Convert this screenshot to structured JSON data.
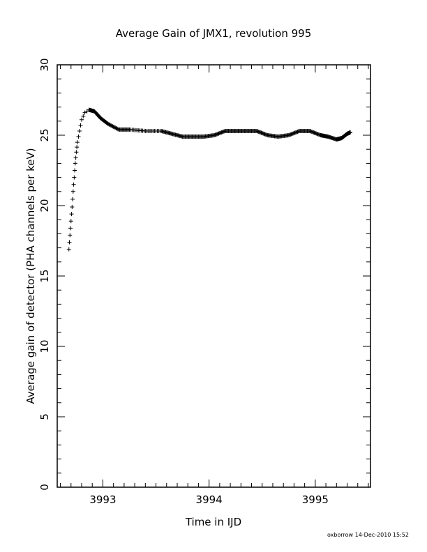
{
  "chart_data": {
    "type": "scatter",
    "title": "Average Gain of JMX1, revolution 995",
    "xlabel": "Time in IJD",
    "ylabel": "Average gain of detector (PHA channels per keV)",
    "xlim": [
      3992.57,
      3995.52
    ],
    "ylim": [
      0,
      30
    ],
    "x_ticks": [
      3993,
      3994,
      3995
    ],
    "y_ticks": [
      0,
      5,
      10,
      15,
      20,
      25,
      30
    ],
    "marker": "plus",
    "grid": false,
    "series": [
      {
        "x": [
          3992.68,
          3992.69,
          3992.7,
          3992.71,
          3992.72,
          3992.73,
          3992.74,
          3992.75,
          3992.76,
          3992.78,
          3992.8,
          3992.83,
          3992.87,
          3992.92,
          3992.98,
          3993.05,
          3993.15,
          3993.25,
          3993.4,
          3993.55,
          3993.65,
          3993.75,
          3993.85,
          3993.95,
          3994.05,
          3994.15,
          3994.25,
          3994.35,
          3994.45,
          3994.55,
          3994.65,
          3994.75,
          3994.85,
          3994.95,
          3995.05,
          3995.12,
          3995.2,
          3995.25,
          3995.3,
          3995.33
        ],
        "y": [
          16.9,
          17.9,
          18.9,
          19.9,
          21.0,
          22.0,
          23.0,
          23.8,
          24.5,
          25.3,
          26.1,
          26.6,
          26.8,
          26.7,
          26.2,
          25.8,
          25.4,
          25.4,
          25.3,
          25.3,
          25.1,
          24.9,
          24.9,
          24.9,
          25.0,
          25.3,
          25.3,
          25.3,
          25.3,
          25.0,
          24.9,
          25.0,
          25.3,
          25.3,
          25.0,
          24.9,
          24.7,
          24.8,
          25.1,
          25.2
        ]
      }
    ]
  },
  "footer": "oxborrow 14-Dec-2010 15:52"
}
